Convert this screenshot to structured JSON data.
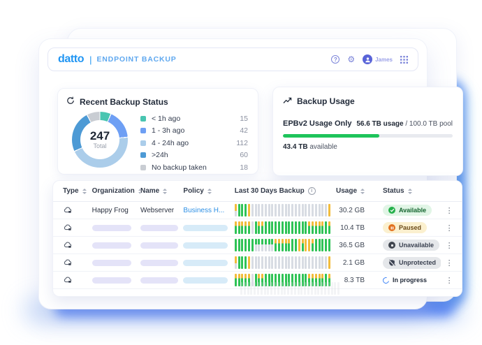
{
  "header": {
    "logo": "datto",
    "divider": "|",
    "product": "ENDPOINT BACKUP",
    "user_name": "James",
    "help_glyph": "?",
    "gear_glyph": "⚙"
  },
  "recent_backup_status": {
    "title": "Recent Backup Status",
    "total_value": "247",
    "total_label": "Total",
    "legend": [
      {
        "label": "< 1h ago",
        "value": 15,
        "color": "#49C5B1"
      },
      {
        "label": "1 - 3h ago",
        "value": 42,
        "color": "#6E9FF4"
      },
      {
        "label": "4 - 24h ago",
        "value": 112,
        "color": "#ABCDEA"
      },
      {
        "label": ">24h",
        "value": 60,
        "color": "#4D9AD5"
      },
      {
        "label": "No backup taken",
        "value": 18,
        "color": "#C9CDD3"
      }
    ]
  },
  "backup_usage": {
    "title": "Backup Usage",
    "pool_label": "EPBv2 Usage Only",
    "usage_bold": "56.6 TB usage",
    "usage_rest": " / 100.0 TB pool",
    "percent": 56.6,
    "available_bold": "43.4 TB",
    "available_rest": " available",
    "bar_color": "#1EC45B"
  },
  "chart_data": [
    {
      "type": "pie",
      "title": "Recent Backup Status",
      "labels": [
        "< 1h ago",
        "1 - 3h ago",
        "4 - 24h ago",
        ">24h",
        "No backup taken"
      ],
      "values": [
        15,
        42,
        112,
        60,
        18
      ],
      "total": 247,
      "colors": [
        "#49C5B1",
        "#6E9FF4",
        "#ABCDEA",
        "#4D9AD5",
        "#C9CDD3"
      ],
      "center_label": "247 Total",
      "legend_position": "right"
    },
    {
      "type": "bar",
      "title": "Backup Usage",
      "categories": [
        "EPBv2 Usage Only"
      ],
      "values": [
        56.6
      ],
      "xlabel": "",
      "ylabel": "TB",
      "ylim": [
        0,
        100
      ],
      "annotations": [
        "56.6 TB usage / 100.0 TB pool",
        "43.4 TB available"
      ]
    }
  ],
  "table": {
    "columns": [
      {
        "key": "type",
        "label": "Type",
        "sort": true
      },
      {
        "key": "org",
        "label": "Organization",
        "sort": true
      },
      {
        "key": "name",
        "label": "Name",
        "sort": true
      },
      {
        "key": "policy",
        "label": "Policy",
        "sort": true
      },
      {
        "key": "bars",
        "label": "Last 30 Days Backup",
        "info": true
      },
      {
        "key": "usage",
        "label": "Usage",
        "sort": true
      },
      {
        "key": "status",
        "label": "Status",
        "sort": true
      },
      {
        "key": "menu",
        "label": "",
        "sort": false
      }
    ],
    "bars_palette": {
      "green": "#2FC356",
      "yellow": "#F2BC3B",
      "gray": "#D8DCE3"
    },
    "rows": [
      {
        "org": "Happy Frog",
        "name": "Webserver",
        "policy": "Business H...",
        "placeholder": false,
        "bars": "PGGGYNNNNNNNNNNNNNNNNNNNNNNNYGG",
        "usage": "30.2 GB",
        "status": {
          "label": "Available",
          "kind": "available"
        }
      },
      {
        "org": "",
        "name": "",
        "policy": "",
        "placeholder": true,
        "bars": "MMMMMNGMMGGGGGGGGGGGGGMMMMMGMG",
        "usage": "10.4 TB",
        "status": {
          "label": "Paused",
          "kind": "paused"
        }
      },
      {
        "org": "",
        "name": "",
        "policy": "",
        "placeholder": true,
        "bars": "GGGGGGHHHHHHMMMMMGGYMYYMGGGGGG",
        "usage": "36.5 GB",
        "status": {
          "label": "Unavailable",
          "kind": "unavailable"
        }
      },
      {
        "org": "",
        "name": "",
        "policy": "",
        "placeholder": true,
        "bars": "PGGGYNNNNNNNNNNNNNNNNNNNNNNNYGG",
        "usage": "2.1 GB",
        "status": {
          "label": "Unprotected",
          "kind": "unprotected"
        }
      },
      {
        "org": "",
        "name": "",
        "policy": "",
        "placeholder": true,
        "bars": "MMMMMNGMMGGGGGGGGGGGGGMMMMMGMG",
        "usage": "8.3 TB",
        "status": {
          "label": "In progress",
          "kind": "inprogress"
        }
      }
    ]
  }
}
